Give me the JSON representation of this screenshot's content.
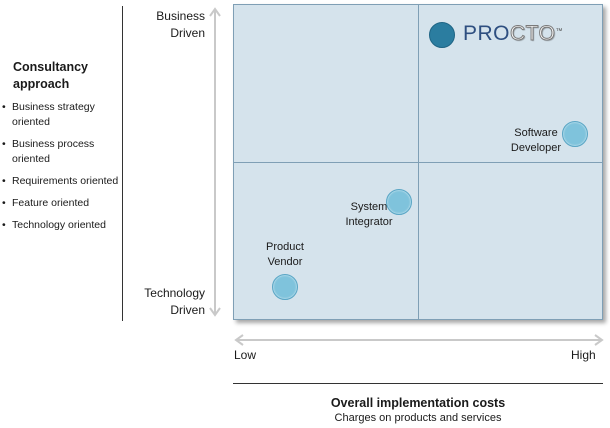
{
  "legend": {
    "title": "Consultancy approach",
    "items": [
      "Business strategy oriented",
      "Business process oriented",
      "Requirements oriented",
      "Feature oriented",
      "Technology oriented"
    ],
    "bullet": "•"
  },
  "y_axis": {
    "top_label": "Business Driven",
    "bottom_label": "Technology Driven"
  },
  "x_axis": {
    "low_label": "Low",
    "high_label": "High",
    "title": "Overall implementation costs",
    "subtitle": "Charges on products and services"
  },
  "brand": {
    "pro": "PRO",
    "cto": "CTO",
    "tm": "™",
    "dot_color": "#2b7da0"
  },
  "players": {
    "software_developer": "Software Developer",
    "system_integrator": "System Integrator",
    "product_vendor": "Product Vendor"
  },
  "colors": {
    "plot_bg": "#d5e3ec",
    "grid": "#7f9fb5",
    "dot": "#7fc3dc",
    "brand_blue": "#2e4f80"
  }
}
